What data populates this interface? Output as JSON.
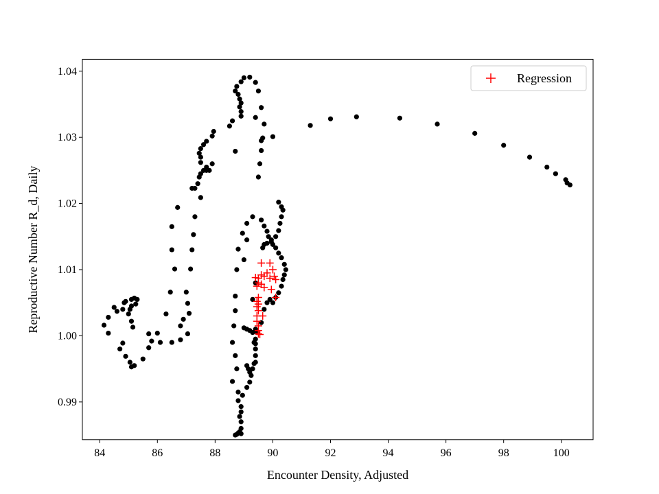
{
  "chart_data": {
    "type": "scatter",
    "title": "",
    "xlabel": "Encounter Density, Adjusted",
    "ylabel": "Reproductive Number R_d, Daily",
    "xlim": [
      83.4,
      101.1
    ],
    "ylim": [
      0.9843,
      1.0418
    ],
    "grid": false,
    "legend_position": "top-right",
    "x_ticks": [
      84,
      86,
      88,
      90,
      92,
      94,
      96,
      98,
      100
    ],
    "y_ticks": [
      0.99,
      1.0,
      1.01,
      1.02,
      1.03,
      1.04
    ],
    "x_tick_labels": [
      "84",
      "86",
      "88",
      "90",
      "92",
      "94",
      "96",
      "98",
      "100"
    ],
    "y_tick_labels": [
      "0.99",
      "1.00",
      "1.01",
      "1.02",
      "1.03",
      "1.04"
    ],
    "series": [
      {
        "name": "",
        "marker": "dot",
        "color": "#000000",
        "points": [
          [
            100.3,
            1.0228
          ],
          [
            100.2,
            1.0231
          ],
          [
            100.15,
            1.0236
          ],
          [
            99.8,
            1.0245
          ],
          [
            99.5,
            1.0255
          ],
          [
            98.9,
            1.027
          ],
          [
            98.0,
            1.0288
          ],
          [
            97.0,
            1.0306
          ],
          [
            95.7,
            1.032
          ],
          [
            94.4,
            1.0329
          ],
          [
            92.9,
            1.0331
          ],
          [
            92.0,
            1.0328
          ],
          [
            91.3,
            1.0318
          ],
          [
            90.0,
            1.0301
          ],
          [
            89.65,
            1.0299
          ],
          [
            89.7,
            1.032
          ],
          [
            89.6,
            1.0345
          ],
          [
            89.5,
            1.037
          ],
          [
            89.4,
            1.0383
          ],
          [
            89.2,
            1.0391
          ],
          [
            89.0,
            1.039
          ],
          [
            88.9,
            1.0384
          ],
          [
            88.75,
            1.0377
          ],
          [
            88.7,
            1.037
          ],
          [
            88.8,
            1.0365
          ],
          [
            88.85,
            1.0358
          ],
          [
            88.9,
            1.0352
          ],
          [
            88.85,
            1.0346
          ],
          [
            88.9,
            1.0339
          ],
          [
            88.9,
            1.0332
          ],
          [
            88.6,
            1.0325
          ],
          [
            88.5,
            1.0317
          ],
          [
            88.7,
            1.0279
          ],
          [
            87.95,
            1.0309
          ],
          [
            87.9,
            1.0302
          ],
          [
            87.7,
            1.0294
          ],
          [
            87.6,
            1.0289
          ],
          [
            87.5,
            1.0283
          ],
          [
            87.45,
            1.0276
          ],
          [
            87.5,
            1.027
          ],
          [
            87.5,
            1.0262
          ],
          [
            87.7,
            1.0255
          ],
          [
            87.6,
            1.025
          ],
          [
            87.5,
            1.0245
          ],
          [
            87.45,
            1.024
          ],
          [
            87.4,
            1.023
          ],
          [
            87.2,
            1.0223
          ],
          [
            87.5,
            1.0209
          ],
          [
            87.3,
            1.018
          ],
          [
            87.25,
            1.0153
          ],
          [
            87.2,
            1.013
          ],
          [
            87.15,
            1.0101
          ],
          [
            87.0,
            1.0066
          ],
          [
            87.05,
            1.0049
          ],
          [
            87.1,
            1.0034
          ],
          [
            86.9,
            1.0025
          ],
          [
            86.8,
            1.0015
          ],
          [
            87.05,
            1.0003
          ],
          [
            86.8,
            0.9994
          ],
          [
            86.5,
            0.999
          ],
          [
            86.1,
            0.999
          ],
          [
            86.0,
            1.0004
          ],
          [
            85.8,
            0.9992
          ],
          [
            85.7,
            0.9982
          ],
          [
            85.7,
            1.0003
          ],
          [
            85.5,
            0.9965
          ],
          [
            85.25,
            1.0048
          ],
          [
            85.3,
            1.0055
          ],
          [
            85.2,
            1.0057
          ],
          [
            85.1,
            1.0055
          ],
          [
            85.1,
            1.0045
          ],
          [
            85.05,
            1.004
          ],
          [
            85.0,
            1.0033
          ],
          [
            85.1,
            1.0022
          ],
          [
            85.15,
            1.0013
          ],
          [
            85.2,
            0.9955
          ],
          [
            85.1,
            0.9953
          ],
          [
            85.05,
            0.996
          ],
          [
            84.9,
            0.9969
          ],
          [
            84.8,
            0.9989
          ],
          [
            84.7,
            0.998
          ],
          [
            84.8,
            1.004
          ],
          [
            84.85,
            1.005
          ],
          [
            84.9,
            1.0052
          ],
          [
            84.6,
            1.0037
          ],
          [
            84.5,
            1.0043
          ],
          [
            84.3,
            1.0028
          ],
          [
            84.3,
            1.0004
          ],
          [
            84.15,
            1.0016
          ],
          [
            86.5,
            1.013
          ],
          [
            86.6,
            1.0101
          ],
          [
            86.5,
            1.0165
          ],
          [
            86.7,
            1.0194
          ],
          [
            86.3,
            1.0033
          ],
          [
            86.45,
            1.0066
          ],
          [
            87.3,
            1.0223
          ],
          [
            87.7,
            1.025
          ],
          [
            87.8,
            1.025
          ],
          [
            87.9,
            1.026
          ],
          [
            88.6,
            0.9931
          ],
          [
            88.7,
            0.985
          ],
          [
            88.75,
            0.9851
          ],
          [
            88.8,
            0.9853
          ],
          [
            88.85,
            0.9855
          ],
          [
            88.9,
            0.9852
          ],
          [
            88.9,
            0.986
          ],
          [
            88.9,
            0.987
          ],
          [
            88.85,
            0.9878
          ],
          [
            88.9,
            0.9885
          ],
          [
            88.9,
            0.9893
          ],
          [
            88.8,
            0.9902
          ],
          [
            88.95,
            0.991
          ],
          [
            88.8,
            0.9915
          ],
          [
            89.1,
            0.9922
          ],
          [
            89.2,
            0.993
          ],
          [
            89.25,
            0.994
          ],
          [
            89.3,
            0.995
          ],
          [
            89.35,
            0.9958
          ],
          [
            89.4,
            0.996
          ],
          [
            89.4,
            0.997
          ],
          [
            89.4,
            0.998
          ],
          [
            89.4,
            0.9988
          ],
          [
            89.4,
            0.9995
          ],
          [
            89.45,
            1.0005
          ],
          [
            89.4,
            1.001
          ],
          [
            89.6,
            1.002
          ],
          [
            89.7,
            1.004
          ],
          [
            89.8,
            1.005
          ],
          [
            89.9,
            1.0055
          ],
          [
            90.0,
            1.005
          ],
          [
            90.1,
            1.0058
          ],
          [
            90.2,
            1.0065
          ],
          [
            90.3,
            1.0075
          ],
          [
            90.35,
            1.0085
          ],
          [
            90.4,
            1.0092
          ],
          [
            90.45,
            1.01
          ],
          [
            90.4,
            1.0108
          ],
          [
            90.3,
            1.0118
          ],
          [
            90.2,
            1.0125
          ],
          [
            90.1,
            1.0133
          ],
          [
            90.0,
            1.0138
          ],
          [
            89.95,
            1.0145
          ],
          [
            89.85,
            1.015
          ],
          [
            89.8,
            1.0158
          ],
          [
            89.7,
            1.0166
          ],
          [
            89.6,
            1.0175
          ],
          [
            90.2,
            1.0202
          ],
          [
            90.3,
            1.0195
          ],
          [
            90.35,
            1.019
          ],
          [
            90.3,
            1.018
          ],
          [
            90.25,
            1.017
          ],
          [
            90.2,
            1.0159
          ],
          [
            90.1,
            1.015
          ],
          [
            89.95,
            1.0142
          ],
          [
            89.8,
            1.014
          ],
          [
            89.7,
            1.0138
          ],
          [
            89.65,
            1.0133
          ],
          [
            89.3,
            1.018
          ],
          [
            89.1,
            1.017
          ],
          [
            88.95,
            1.0155
          ],
          [
            88.8,
            1.0131
          ],
          [
            88.75,
            1.01
          ],
          [
            88.7,
            1.006
          ],
          [
            88.7,
            1.0038
          ],
          [
            88.65,
            1.0015
          ],
          [
            88.6,
            0.999
          ],
          [
            88.7,
            0.997
          ],
          [
            88.75,
            0.995
          ],
          [
            89.1,
            1.001
          ],
          [
            89.2,
            1.0008
          ],
          [
            89.3,
            1.0005
          ],
          [
            89.35,
            0.999
          ],
          [
            89.1,
            0.9955
          ],
          [
            89.15,
            0.995
          ],
          [
            89.2,
            0.9945
          ],
          [
            89.0,
            1.0012
          ],
          [
            89.5,
            1.024
          ],
          [
            89.55,
            1.026
          ],
          [
            89.6,
            1.028
          ],
          [
            89.6,
            1.0295
          ],
          [
            89.4,
            1.033
          ],
          [
            89.0,
            1.0115
          ],
          [
            89.1,
            1.0145
          ],
          [
            89.4,
            1.008
          ],
          [
            89.3,
            1.0055
          ]
        ]
      },
      {
        "name": "Regression",
        "marker": "plus",
        "color": "#ff0000",
        "points": [
          [
            89.6,
            1.011
          ],
          [
            89.9,
            1.011
          ],
          [
            90.0,
            1.01
          ],
          [
            89.8,
            1.0095
          ],
          [
            89.6,
            1.0092
          ],
          [
            89.7,
            1.009
          ],
          [
            90.05,
            1.009
          ],
          [
            89.4,
            1.0088
          ],
          [
            89.5,
            1.0087
          ],
          [
            89.9,
            1.0087
          ],
          [
            90.1,
            1.0085
          ],
          [
            89.5,
            1.008
          ],
          [
            89.6,
            1.0078
          ],
          [
            89.45,
            1.0075
          ],
          [
            89.7,
            1.0073
          ],
          [
            89.95,
            1.007
          ],
          [
            89.5,
            1.0058
          ],
          [
            90.1,
            1.0058
          ],
          [
            89.45,
            1.0052
          ],
          [
            89.5,
            1.0048
          ],
          [
            89.45,
            1.0044
          ],
          [
            89.5,
            1.0038
          ],
          [
            89.45,
            1.003
          ],
          [
            89.65,
            1.003
          ],
          [
            89.45,
            1.0022
          ],
          [
            89.5,
            1.0015
          ],
          [
            89.5,
            1.0008
          ],
          [
            89.5,
            1.0003
          ],
          [
            89.55,
            1.0002
          ]
        ]
      }
    ]
  }
}
